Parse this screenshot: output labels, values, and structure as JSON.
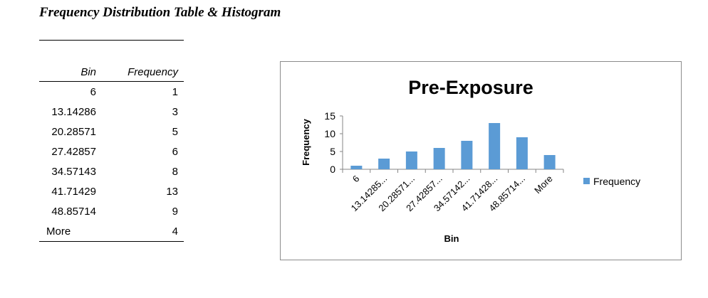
{
  "page": {
    "title": "Frequency Distribution Table & Histogram"
  },
  "table": {
    "headers": [
      "Bin",
      "Frequency"
    ],
    "rows": [
      {
        "bin": "6",
        "frequency": "1"
      },
      {
        "bin": "13.14286",
        "frequency": "3"
      },
      {
        "bin": "20.28571",
        "frequency": "5"
      },
      {
        "bin": "27.42857",
        "frequency": "6"
      },
      {
        "bin": "34.57143",
        "frequency": "8"
      },
      {
        "bin": "41.71429",
        "frequency": "13"
      },
      {
        "bin": "48.85714",
        "frequency": "9"
      },
      {
        "bin": "More",
        "frequency": "4"
      }
    ]
  },
  "chart_data": {
    "type": "bar",
    "title": "Pre-Exposure",
    "xlabel": "Bin",
    "ylabel": "Frequency",
    "categories": [
      "6",
      "13.14285...",
      "20.28571...",
      "27.42857...",
      "34.57142...",
      "41.71428...",
      "48.85714...",
      "More"
    ],
    "series": [
      {
        "name": "Frequency",
        "values": [
          1,
          3,
          5,
          6,
          8,
          13,
          9,
          4
        ],
        "color": "#5b9bd5"
      }
    ],
    "ylim": [
      0,
      15
    ],
    "yticks": [
      0,
      5,
      10,
      15
    ],
    "grid": false,
    "legend_position": "right"
  }
}
